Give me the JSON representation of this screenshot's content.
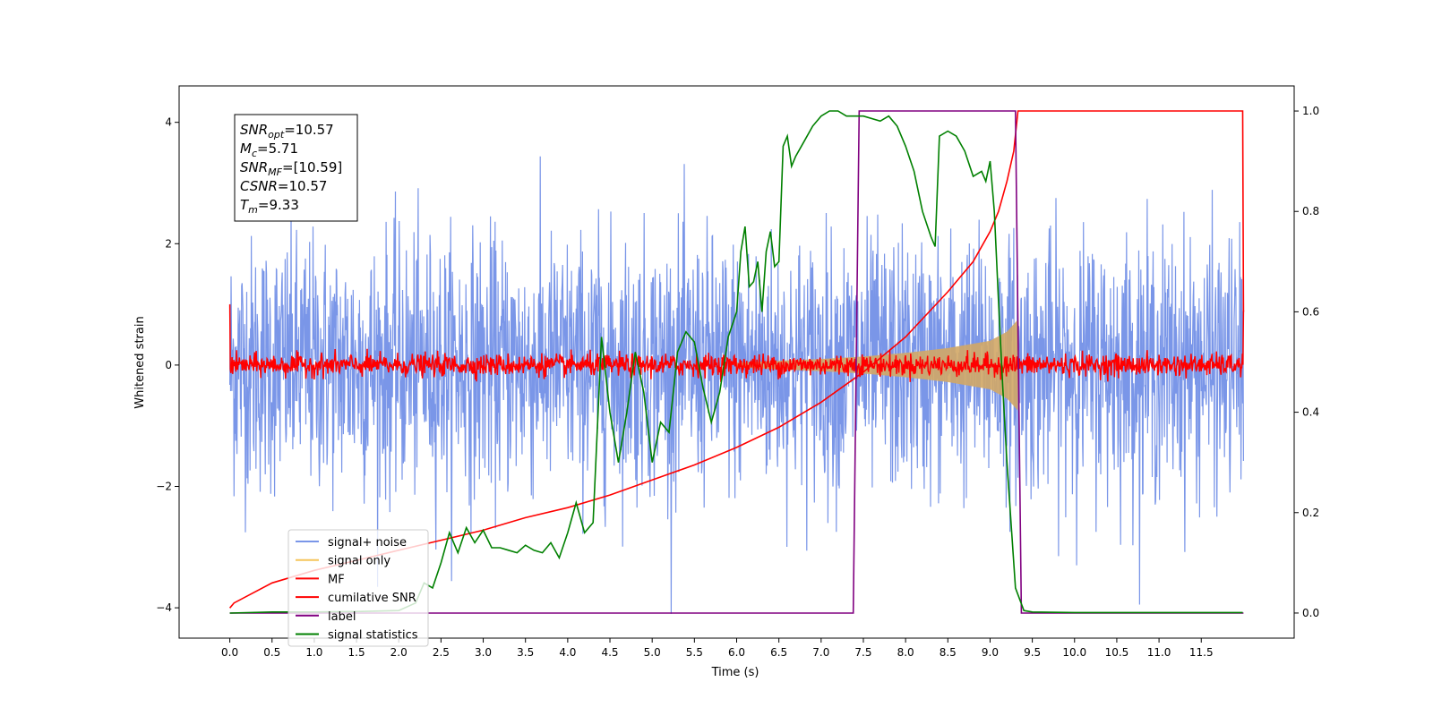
{
  "chart_data": {
    "type": "line",
    "xlabel": "Time (s)",
    "ylabel": "Whitened strain",
    "xlim": [
      -0.6,
      12.6
    ],
    "ylim": [
      -4.5,
      4.6
    ],
    "y2lim": [
      -0.05,
      1.05
    ],
    "x_ticks": [
      "0.0",
      "0.5",
      "1.0",
      "1.5",
      "2.0",
      "2.5",
      "3.0",
      "3.5",
      "4.0",
      "4.5",
      "5.0",
      "5.5",
      "6.0",
      "6.5",
      "7.0",
      "7.5",
      "8.0",
      "8.5",
      "9.0",
      "9.5",
      "10.0",
      "10.5",
      "11.0",
      "11.5"
    ],
    "y_ticks": [
      "4",
      "2",
      "0",
      "−2",
      "−4"
    ],
    "y2_ticks": [
      "1.0",
      "0.8",
      "0.6",
      "0.4",
      "0.2",
      "0.0"
    ],
    "info_box": [
      {
        "sym": "SNR",
        "sub": "opt",
        "value": "=10.57"
      },
      {
        "sym": "M",
        "sub": "c",
        "value": "=5.71"
      },
      {
        "sym": "SNR",
        "sub": "MF",
        "value": "=[10.59]"
      },
      {
        "sym": "CSNR",
        "sub": "",
        "value": "=10.57"
      },
      {
        "sym": "T",
        "sub": "m",
        "value": "=9.33"
      }
    ],
    "legend": {
      "position": "lower-left",
      "entries": [
        {
          "label": "signal+ noise",
          "color": "#7a96e8"
        },
        {
          "label": "signal only",
          "color": "#f5c55a"
        },
        {
          "label": "MF",
          "color": "#ff0000"
        },
        {
          "label": "cumilative SNR",
          "color": "#ff0000"
        },
        {
          "label": "label",
          "color": "#800080"
        },
        {
          "label": "signal statistics",
          "color": "#008000"
        }
      ]
    },
    "series": [
      {
        "name": "signal+ noise",
        "axis": "left",
        "color": "#7a96e8",
        "x_range": [
          0,
          12.0
        ],
        "envelope": [
          -2.5,
          2.5
        ],
        "peaks": [
          -4.1,
          4.2
        ]
      },
      {
        "name": "signal only",
        "axis": "left",
        "color": "#d2a766",
        "x": [
          6.0,
          6.5,
          7.0,
          7.5,
          8.0,
          8.5,
          9.0,
          9.2,
          9.33
        ],
        "amplitude": [
          0.04,
          0.07,
          0.1,
          0.14,
          0.2,
          0.28,
          0.4,
          0.55,
          0.75
        ]
      },
      {
        "name": "MF",
        "axis": "left",
        "color": "#ff0000",
        "x_range": [
          0,
          12.0
        ],
        "envelope": [
          -0.15,
          0.15
        ],
        "endpoints": [
          1.0,
          0.9
        ]
      },
      {
        "name": "cumilative SNR",
        "axis": "right",
        "color": "#ff0000",
        "x": [
          0.0,
          0.05,
          0.5,
          1.0,
          1.5,
          2.0,
          2.5,
          3.0,
          3.5,
          4.0,
          4.5,
          5.0,
          5.5,
          6.0,
          6.5,
          7.0,
          7.5,
          8.0,
          8.5,
          8.8,
          9.0,
          9.1,
          9.2,
          9.28,
          9.33,
          11.99,
          12.0
        ],
        "y": [
          0.01,
          0.02,
          0.06,
          0.085,
          0.105,
          0.125,
          0.145,
          0.165,
          0.19,
          0.21,
          0.235,
          0.265,
          0.295,
          0.33,
          0.37,
          0.42,
          0.48,
          0.55,
          0.64,
          0.7,
          0.76,
          0.8,
          0.86,
          0.92,
          1.0,
          1.0,
          0.6
        ]
      },
      {
        "name": "label",
        "axis": "right",
        "color": "#800080",
        "x": [
          0.0,
          7.38,
          7.45,
          9.3,
          9.37,
          12.0
        ],
        "y": [
          0.0,
          0.0,
          1.0,
          1.0,
          0.0,
          0.0
        ]
      },
      {
        "name": "signal statistics",
        "axis": "right",
        "color": "#008000",
        "x": [
          0.0,
          0.5,
          1.0,
          1.5,
          2.0,
          2.2,
          2.3,
          2.4,
          2.5,
          2.6,
          2.7,
          2.8,
          2.9,
          3.0,
          3.1,
          3.2,
          3.3,
          3.4,
          3.5,
          3.6,
          3.7,
          3.8,
          3.9,
          4.0,
          4.1,
          4.2,
          4.3,
          4.4,
          4.5,
          4.6,
          4.7,
          4.8,
          4.9,
          5.0,
          5.1,
          5.2,
          5.3,
          5.4,
          5.5,
          5.6,
          5.7,
          5.8,
          5.9,
          6.0,
          6.05,
          6.1,
          6.15,
          6.2,
          6.25,
          6.3,
          6.35,
          6.4,
          6.45,
          6.5,
          6.55,
          6.6,
          6.65,
          6.7,
          6.8,
          6.9,
          7.0,
          7.1,
          7.2,
          7.3,
          7.5,
          7.7,
          7.8,
          7.9,
          8.0,
          8.1,
          8.2,
          8.3,
          8.35,
          8.4,
          8.5,
          8.6,
          8.7,
          8.8,
          8.9,
          8.95,
          9.0,
          9.05,
          9.1,
          9.15,
          9.2,
          9.3,
          9.4,
          9.5,
          10.0,
          11.0,
          11.99
        ],
        "y": [
          0.0,
          0.002,
          0.002,
          0.003,
          0.005,
          0.02,
          0.06,
          0.05,
          0.1,
          0.16,
          0.12,
          0.17,
          0.14,
          0.165,
          0.13,
          0.13,
          0.125,
          0.12,
          0.135,
          0.125,
          0.12,
          0.14,
          0.11,
          0.16,
          0.22,
          0.16,
          0.18,
          0.55,
          0.4,
          0.3,
          0.4,
          0.52,
          0.44,
          0.3,
          0.38,
          0.36,
          0.52,
          0.56,
          0.54,
          0.45,
          0.38,
          0.44,
          0.55,
          0.6,
          0.72,
          0.77,
          0.65,
          0.66,
          0.7,
          0.6,
          0.72,
          0.76,
          0.69,
          0.7,
          0.93,
          0.95,
          0.89,
          0.91,
          0.94,
          0.97,
          0.99,
          1.0,
          1.0,
          0.99,
          0.99,
          0.98,
          0.99,
          0.97,
          0.93,
          0.88,
          0.8,
          0.75,
          0.73,
          0.95,
          0.96,
          0.95,
          0.92,
          0.87,
          0.88,
          0.86,
          0.9,
          0.8,
          0.62,
          0.45,
          0.3,
          0.05,
          0.005,
          0.002,
          0.001,
          0.001,
          0.001
        ]
      }
    ]
  }
}
